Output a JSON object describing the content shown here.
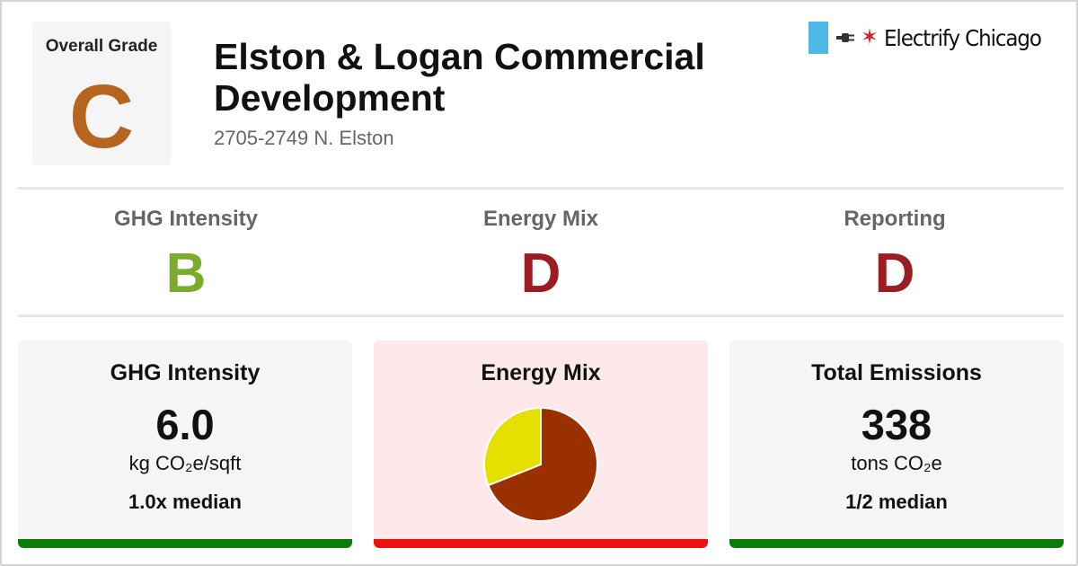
{
  "header": {
    "overall_grade_label": "Overall Grade",
    "overall_grade": "C",
    "overall_grade_color": "#b5651d",
    "title": "Elston & Logan Commercial Development",
    "address": "2705-2749 N. Elston"
  },
  "brand": {
    "name": "Electrify Chicago",
    "flag_color": "#4fb8e7",
    "star_color": "#e02020",
    "icons": [
      "flag-stripe-icon",
      "plug-icon",
      "chicago-star-icon"
    ]
  },
  "grades": [
    {
      "label": "GHG Intensity",
      "grade": "B",
      "color": "#7aab2a"
    },
    {
      "label": "Energy Mix",
      "grade": "D",
      "color": "#9b1c22"
    },
    {
      "label": "Reporting",
      "grade": "D",
      "color": "#9b1c22"
    }
  ],
  "cards": {
    "ghg": {
      "title": "GHG Intensity",
      "value": "6.0",
      "unit": "kg CO₂e/sqft",
      "median": "1.0x median",
      "bar_color": "#0a7d0a"
    },
    "mix": {
      "title": "Energy Mix",
      "bar_color": "#ee1111"
    },
    "emissions": {
      "title": "Total Emissions",
      "value": "338",
      "unit": "tons CO₂e",
      "median": "1/2 median",
      "bar_color": "#0a7d0a"
    }
  },
  "chart_data": {
    "type": "pie",
    "values": [
      69,
      31
    ],
    "colors": [
      "#9a3000",
      "#e6df00"
    ]
  }
}
